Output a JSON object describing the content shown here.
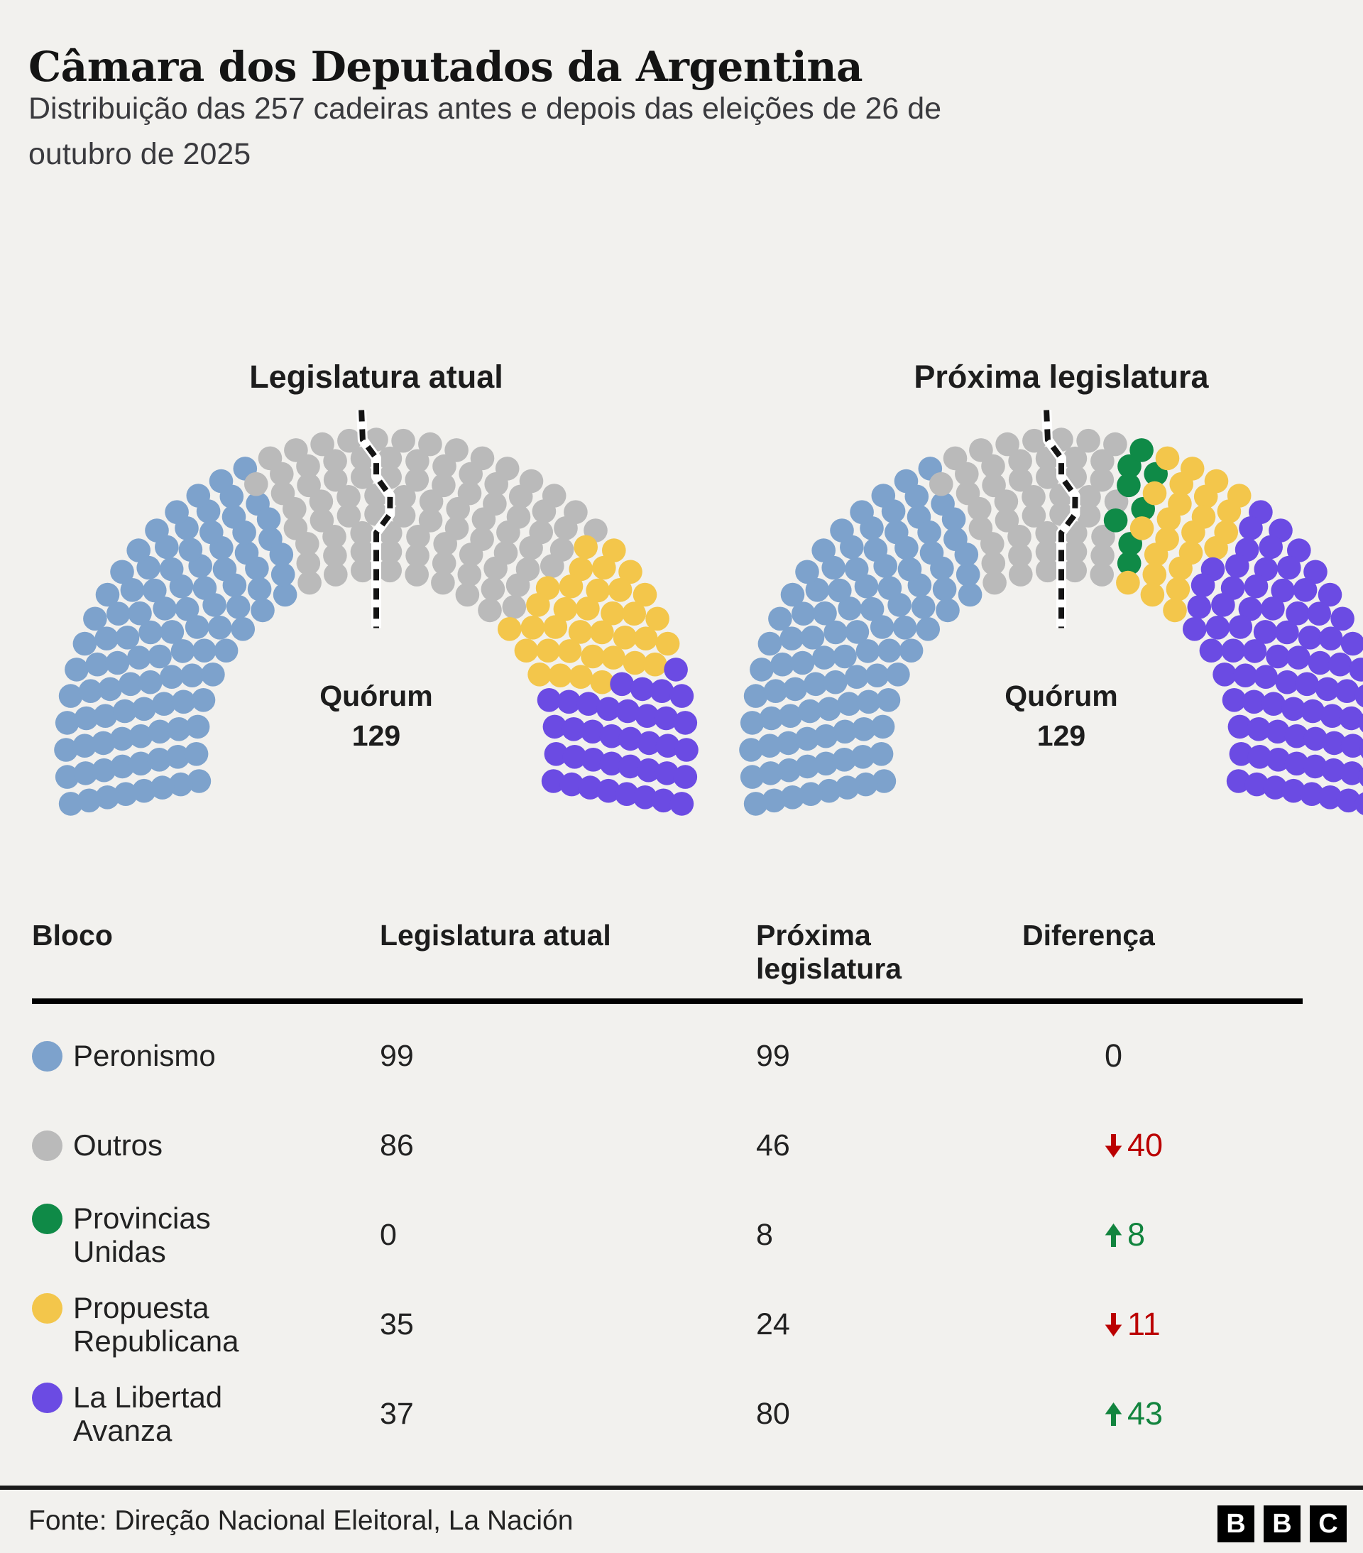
{
  "page": {
    "title": "Câmara dos Deputados da Argentina",
    "subtitle_lines": [
      "Distribuição das 257 cadeiras antes e depois das eleições de 26 de",
      "outubro de 2025"
    ],
    "source": "Fonte: Direção Nacional Eleitoral, La Nación",
    "bbc_logo_letters": [
      "B",
      "B",
      "C"
    ],
    "background_color": "#F2F1EE"
  },
  "parties": {
    "peronismo": {
      "color": "#7DA2CC"
    },
    "outros": {
      "color": "#BABABA"
    },
    "provincias_unidas": {
      "color": "#0F8A47"
    },
    "propuesta_republicana": {
      "color": "#F3C64B"
    },
    "la_libertad_avanza": {
      "color": "#6B4BE3"
    }
  },
  "charts": [
    {
      "id": "atual",
      "title": "Legislatura atual",
      "quorum": {
        "label": "Quórum",
        "value": "129"
      },
      "total_seats": 257,
      "composition": [
        {
          "party": "peronismo",
          "seats": 99
        },
        {
          "party": "outros",
          "seats": 86
        },
        {
          "party": "propuesta_republicana",
          "seats": 35
        },
        {
          "party": "la_libertad_avanza",
          "seats": 37
        }
      ]
    },
    {
      "id": "proxima",
      "title": "Próxima legislatura",
      "quorum": {
        "label": "Quórum",
        "value": "129"
      },
      "total_seats": 257,
      "composition": [
        {
          "party": "peronismo",
          "seats": 99
        },
        {
          "party": "outros",
          "seats": 46
        },
        {
          "party": "provincias_unidas",
          "seats": 8
        },
        {
          "party": "propuesta_republicana",
          "seats": 24
        },
        {
          "party": "la_libertad_avanza",
          "seats": 80
        }
      ]
    }
  ],
  "table": {
    "headers": [
      "Bloco",
      "Legislatura atual",
      "Próxima legislatura",
      "Diferença"
    ],
    "diff_colors": {
      "up": "#12843E",
      "down": "#BB0000",
      "none": "#222222"
    },
    "rows": [
      {
        "party": "peronismo",
        "name": "Peronismo",
        "current": "99",
        "next": "99",
        "diff": {
          "direction": "none",
          "value": "0"
        }
      },
      {
        "party": "outros",
        "name": "Outros",
        "current": "86",
        "next": "46",
        "diff": {
          "direction": "down",
          "value": "40"
        }
      },
      {
        "party": "provincias_unidas",
        "name": "Provincias Unidas",
        "current": "0",
        "next": "8",
        "diff": {
          "direction": "up",
          "value": "8"
        }
      },
      {
        "party": "propuesta_republicana",
        "name": "Propuesta Republicana",
        "current": "35",
        "next": "24",
        "diff": {
          "direction": "down",
          "value": "11"
        }
      },
      {
        "party": "la_libertad_avanza",
        "name": "La Libertad Avanza",
        "current": "37",
        "next": "80",
        "diff": {
          "direction": "up",
          "value": "43"
        }
      }
    ]
  },
  "chart_data": [
    {
      "type": "pie",
      "variant": "parliament-hemicycle",
      "title": "Legislatura atual",
      "total_seats": 257,
      "quorum": 129,
      "categories": [
        "Peronismo",
        "Outros",
        "Provincias Unidas",
        "Propuesta Republicana",
        "La Libertad Avanza"
      ],
      "values": [
        99,
        86,
        0,
        35,
        37
      ],
      "colors": [
        "#7DA2CC",
        "#BABABA",
        "#0F8A47",
        "#F3C64B",
        "#6B4BE3"
      ]
    },
    {
      "type": "pie",
      "variant": "parliament-hemicycle",
      "title": "Próxima legislatura",
      "total_seats": 257,
      "quorum": 129,
      "categories": [
        "Peronismo",
        "Outros",
        "Provincias Unidas",
        "Propuesta Republicana",
        "La Libertad Avanza"
      ],
      "values": [
        99,
        46,
        8,
        24,
        80
      ],
      "colors": [
        "#7DA2CC",
        "#BABABA",
        "#0F8A47",
        "#F3C64B",
        "#6B4BE3"
      ]
    },
    {
      "type": "table",
      "title": "Distribuição das 257 cadeiras antes e depois das eleições de 26 de outubro de 2025",
      "columns": [
        "Bloco",
        "Legislatura atual",
        "Próxima legislatura",
        "Diferença"
      ],
      "rows": [
        [
          "Peronismo",
          99,
          99,
          0
        ],
        [
          "Outros",
          86,
          46,
          -40
        ],
        [
          "Provincias Unidas",
          0,
          8,
          8
        ],
        [
          "Propuesta Republicana",
          35,
          24,
          -11
        ],
        [
          "La Libertad Avanza",
          37,
          80,
          43
        ]
      ]
    }
  ]
}
